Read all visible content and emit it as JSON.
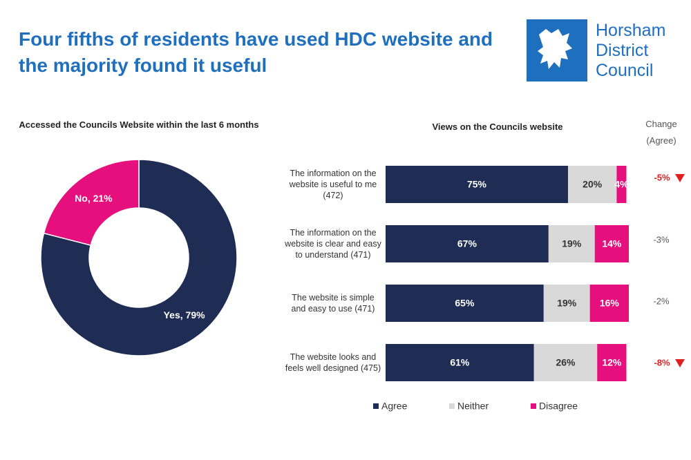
{
  "header": {
    "title": "Four fifths of residents have used HDC website and the majority found it useful"
  },
  "logo": {
    "lines": [
      "Horsham",
      "District",
      "Council"
    ]
  },
  "chart_data": [
    {
      "type": "pie",
      "title": "Accessed the Councils Website within the last 6 months",
      "values": [
        79,
        21
      ],
      "value_labels": [
        "Yes, 79%",
        "No, 21%"
      ],
      "colors": [
        "#1f2d55",
        "#e5107e"
      ],
      "donut": true
    },
    {
      "type": "stacked-barh",
      "title": "Views on the Councils website",
      "categories": [
        "The information on the website is useful to me (472)",
        "The information on the website is clear and easy to understand (471)",
        "The website is simple and easy to use (471)",
        "The website looks and feels well designed (475)"
      ],
      "xlim": [
        0,
        100
      ],
      "series": [
        {
          "name": "Agree",
          "color": "#1f2d55",
          "values": [
            75,
            67,
            65,
            61
          ],
          "value_labels": [
            "75%",
            "67%",
            "65%",
            "61%"
          ]
        },
        {
          "name": "Neither",
          "color": "#d9d9d9",
          "values": [
            20,
            19,
            19,
            26
          ],
          "value_labels": [
            "20%",
            "19%",
            "19%",
            "26%"
          ]
        },
        {
          "name": "Disagree",
          "color": "#e5107e",
          "values": [
            4,
            14,
            16,
            12
          ],
          "value_labels": [
            "4%",
            "14%",
            "16%",
            "12%"
          ]
        }
      ]
    }
  ],
  "change": {
    "title": "Change (Agree)",
    "values": [
      -5,
      -3,
      -2,
      -8
    ],
    "value_labels": [
      "-5%",
      "-3%",
      "-2%",
      "-8%"
    ],
    "colors": [
      "#e02020",
      "#595959",
      "#595959",
      "#e02020"
    ],
    "markers": [
      true,
      false,
      false,
      true
    ]
  }
}
